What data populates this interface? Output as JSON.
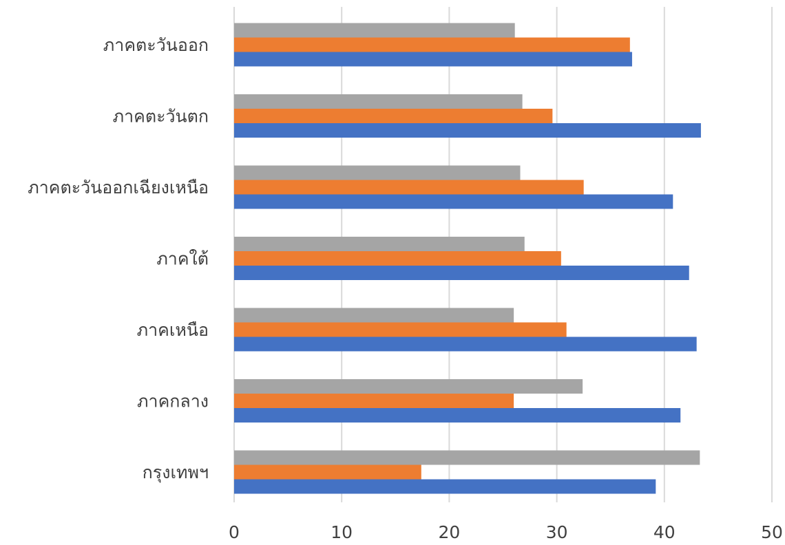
{
  "chart_data": {
    "type": "bar",
    "orientation": "horizontal",
    "title": "",
    "xlabel": "",
    "ylabel": "",
    "categories": [
      "กรุงเทพฯ",
      "ภาคกลาง",
      "ภาคเหนือ",
      "ภาคใต้",
      "ภาคตะวันออกเฉียงเหนือ",
      "ภาคตะวันตก",
      "ภาคตะวันออก"
    ],
    "series": [
      {
        "color": "#4472C4",
        "values": [
          39.2,
          41.5,
          43.0,
          42.3,
          40.8,
          43.4,
          37.0
        ]
      },
      {
        "color": "#ED7D31",
        "values": [
          17.4,
          26.0,
          30.9,
          30.4,
          32.5,
          29.6,
          36.8
        ]
      },
      {
        "color": "#A5A5A5",
        "values": [
          43.3,
          32.4,
          26.0,
          27.0,
          26.6,
          26.8,
          26.1
        ]
      }
    ],
    "xlim": [
      0,
      50
    ],
    "xticks": [
      "0",
      "10",
      "20",
      "30",
      "40",
      "50"
    ],
    "grid": true,
    "legend": "none"
  }
}
